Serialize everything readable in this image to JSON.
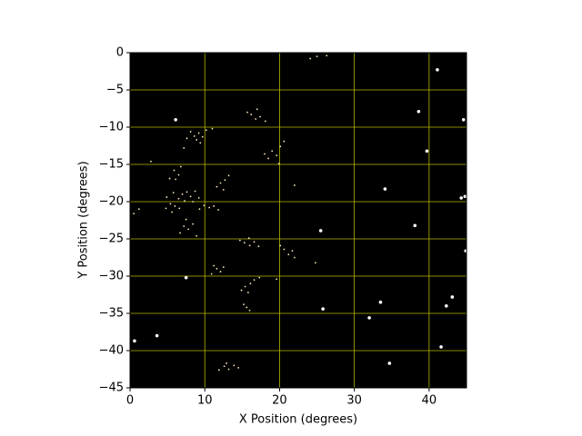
{
  "chart_data": {
    "type": "scatter",
    "xlabel": "X Position (degrees)",
    "ylabel": "Y Position (degrees)",
    "xlim": [
      0,
      45
    ],
    "ylim": [
      -45,
      0
    ],
    "xticks": [
      0,
      10,
      20,
      30,
      40
    ],
    "yticks": [
      0,
      {
        "value": -5,
        "label": "−5"
      },
      {
        "value": -10,
        "label": "−10"
      },
      {
        "value": -15,
        "label": "−15"
      },
      {
        "value": -20,
        "label": "−20"
      },
      {
        "value": -25,
        "label": "−25"
      },
      {
        "value": -30,
        "label": "−30"
      },
      {
        "value": -35,
        "label": "−35"
      },
      {
        "value": -40,
        "label": "−40"
      },
      {
        "value": -45,
        "label": "−45"
      }
    ],
    "grid": true,
    "grid_color": "#b8b800",
    "background": "#000000",
    "series": [
      {
        "color": "#ffe9b8",
        "marker_size": 0.9,
        "x": [
          8.1,
          8.6,
          9.2,
          9.7,
          8.9,
          7.6,
          10.2,
          9.4,
          11.0,
          7.2,
          16.2,
          16.8,
          17.4,
          15.7,
          18.1,
          17.0,
          19.0,
          19.6,
          20.1,
          18.5,
          19.9,
          20.6,
          18.0,
          12.1,
          12.7,
          13.2,
          11.6,
          12.5,
          5.9,
          6.5,
          6.1,
          5.3,
          6.8,
          7.0,
          7.6,
          8.1,
          6.5,
          7.3,
          8.7,
          5.8,
          4.9,
          8.4,
          9.2,
          5.4,
          6.0,
          4.8,
          5.6,
          6.6,
          9.9,
          10.6,
          11.2,
          9.3,
          11.8,
          7.2,
          7.8,
          6.7,
          8.4,
          7.5,
          8.9,
          15.3,
          16.0,
          16.6,
          14.7,
          17.2,
          15.9,
          20.6,
          21.2,
          21.7,
          20.1,
          22.0,
          11.6,
          12.1,
          11.2,
          12.5,
          10.9,
          15.4,
          16.1,
          16.6,
          14.9,
          15.8,
          17.3,
          15.6,
          16.0,
          15.2,
          12.6,
          13.2,
          13.9,
          11.9,
          12.9,
          14.5,
          24.1,
          25.0,
          26.3,
          0.5,
          1.2,
          2.8,
          22.0,
          24.8,
          19.6
        ],
        "y": [
          -10.6,
          -11.2,
          -10.8,
          -11.3,
          -11.7,
          -11.5,
          -10.4,
          -12.1,
          -10.2,
          -12.8,
          -8.3,
          -8.9,
          -8.6,
          -8.0,
          -9.2,
          -7.6,
          -13.2,
          -13.8,
          -12.6,
          -14.2,
          -14.9,
          -11.9,
          -13.6,
          -17.5,
          -17.1,
          -16.5,
          -18.0,
          -18.4,
          -15.8,
          -16.4,
          -17.0,
          -16.9,
          -15.3,
          -19.0,
          -18.7,
          -19.3,
          -19.6,
          -19.9,
          -18.6,
          -18.8,
          -19.4,
          -20.0,
          -19.5,
          -20.3,
          -20.6,
          -20.9,
          -21.4,
          -20.9,
          -20.5,
          -20.8,
          -20.6,
          -21.0,
          -21.1,
          -23.3,
          -23.7,
          -24.2,
          -23.0,
          -22.4,
          -24.6,
          -25.5,
          -25.9,
          -25.4,
          -25.2,
          -26.0,
          -24.9,
          -26.4,
          -27.1,
          -26.6,
          -25.9,
          -27.5,
          -29.0,
          -29.4,
          -28.6,
          -28.8,
          -29.7,
          -31.4,
          -31.0,
          -30.5,
          -31.9,
          -32.2,
          -30.2,
          -34.2,
          -34.6,
          -33.8,
          -42.1,
          -42.5,
          -42.0,
          -42.6,
          -41.7,
          -42.3,
          -0.8,
          -0.5,
          -0.4,
          -21.6,
          -21.0,
          -14.6,
          -17.8,
          -28.2,
          -30.4
        ]
      },
      {
        "color": "#ffffff",
        "marker_size": 1.8,
        "x": [
          41.1,
          38.6,
          39.7,
          44.6,
          44.3,
          44.8,
          38.1,
          25.5,
          25.8,
          32.0,
          34.7,
          43.1,
          42.3,
          3.6,
          0.6,
          7.5,
          34.1,
          41.6,
          44.9,
          6.1,
          33.5
        ],
        "y": [
          -2.3,
          -7.9,
          -13.2,
          -9.0,
          -19.5,
          -19.3,
          -23.2,
          -23.9,
          -34.4,
          -35.6,
          -41.7,
          -32.8,
          -34.0,
          -38.0,
          -38.7,
          -30.2,
          -18.3,
          -39.5,
          -26.6,
          -9.0,
          -33.5
        ]
      }
    ]
  }
}
